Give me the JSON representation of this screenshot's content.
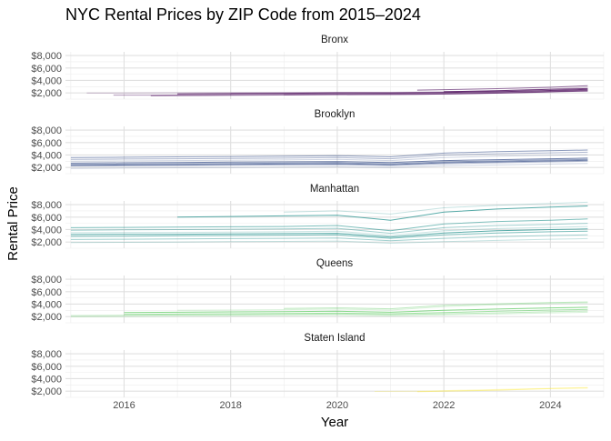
{
  "chart_data": {
    "type": "line",
    "title": "NYC Rental Prices by ZIP Code from 2015–2024",
    "xlabel": "Year",
    "ylabel": "Rental Price",
    "x_ticks": [
      2016,
      2018,
      2020,
      2022,
      2024
    ],
    "y_ticks": [
      2000,
      4000,
      6000,
      8000
    ],
    "y_tick_labels": [
      "$2,000",
      "$4,000",
      "$6,000",
      "$8,000"
    ],
    "xlim": [
      2014.9,
      2025.0
    ],
    "ylim": [
      1000,
      8600
    ],
    "grid": true,
    "legend": "none",
    "panels": [
      {
        "name": "Bronx",
        "color": "#440154",
        "series": [
          {
            "x": [
              2015.3,
              2016.0,
              2017.0,
              2018.0,
              2019.0,
              2020.0,
              2021.0,
              2022.0,
              2023.0,
              2024.0,
              2024.7
            ],
            "y": [
              2000,
              2000,
              2020,
              2040,
              2060,
              2090,
              2090,
              2140,
              2220,
              2360,
              2480
            ]
          },
          {
            "x": [
              2015.8,
              2016.5,
              2017.5,
              2018.5,
              2019.5,
              2020.5,
              2021.5,
              2022.5,
              2023.5,
              2024.2,
              2024.7
            ],
            "y": [
              1650,
              1650,
              1700,
              1760,
              1810,
              1840,
              1890,
              1970,
              2140,
              2300,
              2420
            ]
          },
          {
            "x": [
              2016.5,
              2017.5,
              2018.5,
              2019.5,
              2020.5,
              2021.5,
              2022.5,
              2023.5,
              2024.2,
              2024.7
            ],
            "y": [
              1550,
              1580,
              1640,
              1700,
              1730,
              1780,
              1870,
              2040,
              2200,
              2290
            ]
          },
          {
            "x": [
              2017.0,
              2018.0,
              2019.0,
              2020.0,
              2021.0,
              2022.0,
              2023.0,
              2024.0,
              2024.7
            ],
            "y": [
              1850,
              1890,
              1940,
              1990,
              1980,
              2060,
              2190,
              2390,
              2560
            ]
          },
          {
            "x": [
              2018.0,
              2019.0,
              2020.0,
              2021.0,
              2022.0,
              2023.0,
              2024.0,
              2024.7
            ],
            "y": [
              1950,
              2000,
              2060,
              2040,
              2150,
              2340,
              2620,
              2900
            ]
          },
          {
            "x": [
              2019.0,
              2020.0,
              2021.0,
              2022.0,
              2023.0,
              2024.0,
              2024.7
            ],
            "y": [
              1700,
              1760,
              1740,
              1820,
              1980,
              2180,
              2380
            ]
          },
          {
            "x": [
              2021.5,
              2022.0,
              2023.0,
              2024.0,
              2024.7
            ],
            "y": [
              2450,
              2520,
              2680,
              2900,
              3150
            ]
          },
          {
            "x": [
              2022.0,
              2023.0,
              2024.0,
              2024.7
            ],
            "y": [
              2200,
              2350,
              2560,
              2700
            ]
          }
        ]
      },
      {
        "name": "Brooklyn",
        "color": "#3b528b",
        "series": [
          {
            "x": [
              2015.0,
              2016.0,
              2017.0,
              2018.0,
              2019.0,
              2020.0,
              2021.0,
              2022.0,
              2023.0,
              2024.0,
              2024.7
            ],
            "y": [
              1850,
              1900,
              1950,
              2000,
              2050,
              2100,
              1980,
              2250,
              2400,
              2550,
              2650
            ]
          },
          {
            "x": [
              2015.0,
              2016.0,
              2017.0,
              2018.0,
              2019.0,
              2020.0,
              2021.0,
              2022.0,
              2023.0,
              2024.0,
              2024.7
            ],
            "y": [
              2200,
              2250,
              2300,
              2350,
              2400,
              2450,
              2300,
              2600,
              2750,
              2900,
              3000
            ]
          },
          {
            "x": [
              2015.0,
              2016.0,
              2017.0,
              2018.0,
              2019.0,
              2020.0,
              2021.0,
              2022.0,
              2023.0,
              2024.0,
              2024.7
            ],
            "y": [
              2500,
              2550,
              2600,
              2650,
              2700,
              2750,
              2600,
              2900,
              3050,
              3200,
              3300
            ]
          },
          {
            "x": [
              2015.0,
              2016.0,
              2017.0,
              2018.0,
              2019.0,
              2020.0,
              2021.0,
              2022.0,
              2023.0,
              2024.0,
              2024.7
            ],
            "y": [
              2700,
              2750,
              2800,
              2850,
              2900,
              2950,
              2800,
              3100,
              3250,
              3400,
              3500
            ]
          },
          {
            "x": [
              2015.0,
              2016.0,
              2017.0,
              2018.0,
              2019.0,
              2020.0,
              2021.0,
              2022.0,
              2023.0,
              2024.0,
              2024.7
            ],
            "y": [
              3000,
              3050,
              3100,
              3150,
              3200,
              3300,
              3100,
              3600,
              3800,
              3950,
              4050
            ]
          },
          {
            "x": [
              2015.0,
              2016.0,
              2017.0,
              2018.0,
              2019.0,
              2020.0,
              2021.0,
              2022.0,
              2023.0,
              2024.0,
              2024.7
            ],
            "y": [
              3300,
              3350,
              3400,
              3450,
              3500,
              3600,
              3400,
              4000,
              4200,
              4350,
              4450
            ]
          },
          {
            "x": [
              2015.0,
              2016.0,
              2017.0,
              2018.0,
              2019.0,
              2020.0,
              2021.0,
              2022.0,
              2023.0,
              2024.0,
              2024.7
            ],
            "y": [
              3600,
              3650,
              3700,
              3750,
              3800,
              3900,
              3700,
              4300,
              4550,
              4700,
              4800
            ]
          },
          {
            "x": [
              2015.0,
              2016.0,
              2017.0,
              2018.0,
              2019.0,
              2020.0,
              2021.0,
              2022.0,
              2023.0,
              2024.0,
              2024.7
            ],
            "y": [
              2350,
              2400,
              2450,
              2500,
              2550,
              2600,
              2450,
              2750,
              2900,
              3050,
              3150
            ]
          }
        ]
      },
      {
        "name": "Manhattan",
        "color": "#21908c",
        "series": [
          {
            "x": [
              2015.0,
              2016.0,
              2017.0,
              2018.0,
              2019.0,
              2020.0,
              2021.0,
              2022.0,
              2023.0,
              2024.0,
              2024.7
            ],
            "y": [
              1900,
              1950,
              2000,
              2050,
              2100,
              2150,
              1800,
              2050,
              2250,
              2450,
              2550
            ]
          },
          {
            "x": [
              2015.0,
              2016.0,
              2017.0,
              2018.0,
              2019.0,
              2020.0,
              2021.0,
              2022.0,
              2023.0,
              2024.0,
              2024.7
            ],
            "y": [
              2400,
              2450,
              2500,
              2550,
              2600,
              2650,
              2200,
              2600,
              2850,
              3050,
              3150
            ]
          },
          {
            "x": [
              2015.0,
              2016.0,
              2017.0,
              2018.0,
              2019.0,
              2020.0,
              2021.0,
              2022.0,
              2023.0,
              2024.0,
              2024.7
            ],
            "y": [
              2900,
              2950,
              3000,
              3050,
              3100,
              3150,
              2600,
              3150,
              3450,
              3650,
              3750
            ]
          },
          {
            "x": [
              2015.0,
              2016.0,
              2017.0,
              2018.0,
              2019.0,
              2020.0,
              2021.0,
              2022.0,
              2023.0,
              2024.0,
              2024.7
            ],
            "y": [
              3200,
              3250,
              3250,
              3300,
              3350,
              3400,
              2800,
              3450,
              3800,
              4000,
              4100
            ]
          },
          {
            "x": [
              2015.0,
              2016.0,
              2017.0,
              2018.0,
              2019.0,
              2020.0,
              2021.0,
              2022.0,
              2023.0,
              2024.0,
              2024.7
            ],
            "y": [
              3500,
              3550,
              3550,
              3600,
              3650,
              3750,
              3050,
              3800,
              4150,
              4350,
              4500
            ]
          },
          {
            "x": [
              2015.0,
              2016.0,
              2017.0,
              2018.0,
              2019.0,
              2020.0,
              2021.0,
              2022.0,
              2023.0,
              2024.0,
              2024.7
            ],
            "y": [
              3900,
              3950,
              4000,
              4050,
              4100,
              4200,
              3400,
              4300,
              4650,
              4850,
              5000
            ]
          },
          {
            "x": [
              2015.0,
              2016.0,
              2017.0,
              2018.0,
              2019.0,
              2020.0,
              2021.0,
              2022.0,
              2023.0,
              2024.0,
              2024.7
            ],
            "y": [
              4300,
              4350,
              4400,
              4450,
              4500,
              4650,
              3800,
              4900,
              5300,
              5500,
              5700
            ]
          },
          {
            "x": [
              2017.0,
              2018.0,
              2019.0,
              2020.0,
              2021.0,
              2022.0,
              2023.0,
              2024.0,
              2024.7
            ],
            "y": [
              6000,
              6100,
              6200,
              6300,
              5500,
              6800,
              7300,
              7600,
              7800
            ]
          },
          {
            "x": [
              2019.0,
              2020.0,
              2021.0,
              2022.0,
              2023.0,
              2024.0,
              2024.7
            ],
            "y": [
              6800,
              7000,
              6500,
              7500,
              7900,
              8200,
              8400
            ]
          }
        ]
      },
      {
        "name": "Queens",
        "color": "#5ec962",
        "series": [
          {
            "x": [
              2015.0,
              2016.0,
              2017.0,
              2018.0,
              2019.0,
              2020.0,
              2021.0,
              2022.0,
              2023.0,
              2024.0,
              2024.7
            ],
            "y": [
              1950,
              2000,
              2050,
              2100,
              2150,
              2200,
              2100,
              2250,
              2400,
              2600,
              2700
            ]
          },
          {
            "x": [
              2015.0,
              2016.0,
              2017.0,
              2018.0,
              2019.0,
              2020.0,
              2021.0,
              2022.0,
              2023.0,
              2024.0,
              2024.7
            ],
            "y": [
              2150,
              2200,
              2250,
              2300,
              2350,
              2400,
              2300,
              2450,
              2600,
              2800,
              2900
            ]
          },
          {
            "x": [
              2016.0,
              2017.0,
              2018.0,
              2019.0,
              2020.0,
              2021.0,
              2022.0,
              2023.0,
              2024.0,
              2024.7
            ],
            "y": [
              2350,
              2400,
              2450,
              2500,
              2550,
              2450,
              2650,
              2850,
              3050,
              3150
            ]
          },
          {
            "x": [
              2016.0,
              2017.0,
              2018.0,
              2019.0,
              2020.0,
              2021.0,
              2022.0,
              2023.0,
              2024.0,
              2024.7
            ],
            "y": [
              2650,
              2700,
              2750,
              2800,
              2850,
              2700,
              3000,
              3200,
              3400,
              3500
            ]
          },
          {
            "x": [
              2017.0,
              2018.0,
              2019.0,
              2020.0,
              2021.0,
              2022.0,
              2023.0,
              2024.0,
              2024.7
            ],
            "y": [
              3000,
              3050,
              3100,
              3200,
              3050,
              3600,
              3900,
              4100,
              4200
            ]
          },
          {
            "x": [
              2019.0,
              2020.0,
              2021.0,
              2022.0,
              2023.0,
              2024.0,
              2024.7
            ],
            "y": [
              3300,
              3400,
              3250,
              3800,
              4050,
              4250,
              4350
            ]
          }
        ]
      },
      {
        "name": "Staten Island",
        "color": "#fde725",
        "series": [
          {
            "x": [
              2020.7,
              2021.5,
              2022.0,
              2023.0,
              2024.0,
              2024.7
            ],
            "y": [
              1950,
              2000,
              2080,
              2250,
              2450,
              2600
            ]
          },
          {
            "x": [
              2021.5,
              2022.0,
              2023.0,
              2024.0,
              2024.7
            ],
            "y": [
              1900,
              1980,
              2150,
              2400,
              2500
            ]
          }
        ]
      }
    ]
  }
}
